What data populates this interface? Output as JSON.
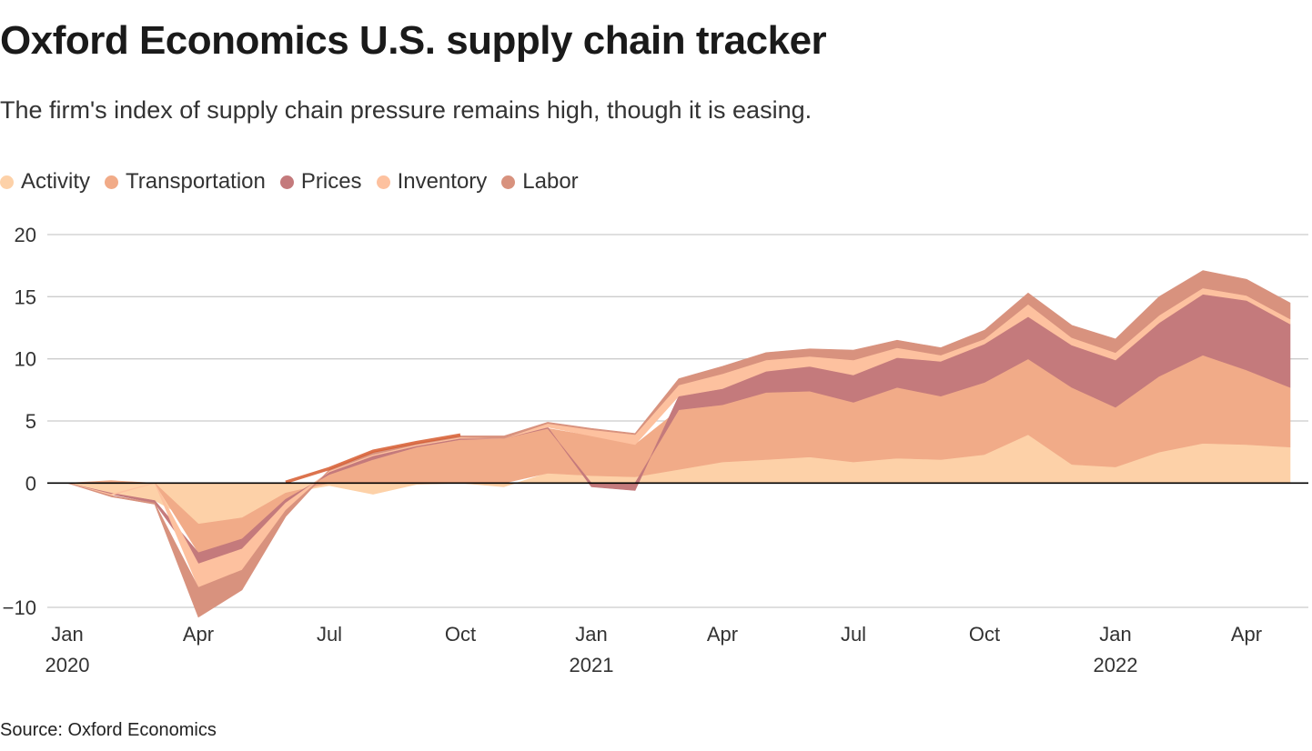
{
  "title": "Oxford Economics U.S. supply chain tracker",
  "subtitle": "The firm's index of supply chain pressure remains high, though it is easing.",
  "source": "Source: Oxford Economics",
  "colors": {
    "activity": "#fdd1a8",
    "transportation": "#f1ab88",
    "prices": "#c47a7c",
    "inventory": "#fdc19f",
    "labor": "#d8927e",
    "early_rise": "#d65a2e",
    "grid": "#cccccc",
    "zero": "#000000"
  },
  "chart_data": {
    "type": "area",
    "stacked": true,
    "title": "Oxford Economics U.S. supply chain tracker",
    "ylim": [
      -10,
      20
    ],
    "y_ticks": [
      "20",
      "15",
      "10",
      "5",
      "0",
      "−10"
    ],
    "y_tick_values": [
      20,
      15,
      10,
      5,
      0,
      -10
    ],
    "x_ticks": [
      {
        "label": "Jan",
        "sub": "2020",
        "index": 0
      },
      {
        "label": "Apr",
        "sub": "",
        "index": 3
      },
      {
        "label": "Jul",
        "sub": "",
        "index": 6
      },
      {
        "label": "Oct",
        "sub": "",
        "index": 9
      },
      {
        "label": "Jan",
        "sub": "2021",
        "index": 12
      },
      {
        "label": "Apr",
        "sub": "",
        "index": 15
      },
      {
        "label": "Jul",
        "sub": "",
        "index": 18
      },
      {
        "label": "Oct",
        "sub": "",
        "index": 21
      },
      {
        "label": "Jan",
        "sub": "2022",
        "index": 24
      },
      {
        "label": "Apr",
        "sub": "",
        "index": 27
      }
    ],
    "months": [
      "2020-01",
      "2020-02",
      "2020-03",
      "2020-04",
      "2020-05",
      "2020-06",
      "2020-07",
      "2020-08",
      "2020-09",
      "2020-10",
      "2020-11",
      "2020-12",
      "2021-01",
      "2021-02",
      "2021-03",
      "2021-04",
      "2021-05",
      "2021-06",
      "2021-07",
      "2021-08",
      "2021-09",
      "2021-10",
      "2021-11",
      "2021-12",
      "2022-01",
      "2022-02",
      "2022-03",
      "2022-04",
      "2022-05"
    ],
    "legend_position": "top-left",
    "grid": true,
    "series": [
      {
        "name": "Activity",
        "key": "activity",
        "values": [
          0,
          -0.8,
          -1.4,
          -3.3,
          -2.8,
          -0.8,
          -0.2,
          -0.9,
          -0.1,
          0,
          -0.3,
          0.8,
          0.6,
          0.5,
          1.1,
          1.7,
          1.9,
          2.1,
          1.7,
          2.0,
          1.9,
          2.3,
          3.9,
          1.5,
          1.3,
          2.5,
          3.2,
          3.1,
          2.9
        ]
      },
      {
        "name": "Transportation",
        "key": "transportation",
        "values": [
          0,
          0.2,
          0,
          -2.3,
          -1.7,
          -0.5,
          0.7,
          1.9,
          2.9,
          3.5,
          3.6,
          3.6,
          3.2,
          2.6,
          4.8,
          4.6,
          5.4,
          5.3,
          4.8,
          5.7,
          5.1,
          5.8,
          6.1,
          6.2,
          4.8,
          6.1,
          7.1,
          6.0,
          4.8
        ]
      },
      {
        "name": "Prices",
        "key": "prices",
        "values": [
          0,
          -0.1,
          -0.2,
          -0.9,
          -0.8,
          -0.3,
          0.2,
          0.3,
          0.1,
          0.1,
          0,
          0.1,
          -0.3,
          -0.6,
          1.1,
          1.3,
          1.7,
          2.0,
          2.2,
          2.4,
          2.8,
          3.1,
          3.4,
          3.4,
          3.8,
          4.3,
          4.9,
          5.6,
          5.1
        ]
      },
      {
        "name": "Inventory",
        "key": "inventory",
        "values": [
          0,
          -0.1,
          0,
          -1.9,
          -1.7,
          -0.6,
          0.1,
          0.1,
          0.1,
          0.1,
          0,
          0.3,
          0.5,
          0.8,
          0.9,
          1.2,
          0.9,
          0.8,
          1.2,
          0.8,
          0.5,
          0.4,
          1.0,
          0.6,
          0.6,
          0.6,
          0.5,
          0.4,
          0.4
        ]
      },
      {
        "name": "Labor",
        "key": "labor",
        "values": [
          0,
          -0.1,
          -0.1,
          -2.4,
          -1.6,
          -0.5,
          0.1,
          0.2,
          0.1,
          0.1,
          0.2,
          0.1,
          0.1,
          0.1,
          0.5,
          0.6,
          0.6,
          0.6,
          0.8,
          0.6,
          0.6,
          0.7,
          0.9,
          1.0,
          1.1,
          1.5,
          1.4,
          1.3,
          1.3
        ]
      }
    ]
  }
}
